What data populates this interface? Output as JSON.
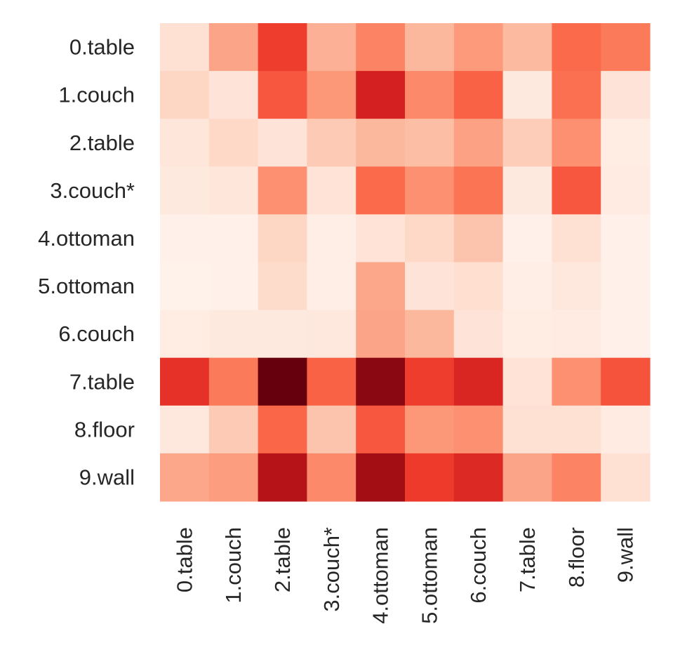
{
  "chart_data": {
    "type": "heatmap",
    "title": "",
    "xlabel": "",
    "ylabel": "",
    "row_labels": [
      "0.table",
      "1.couch",
      "2.table",
      "3.couch*",
      "4.ottoman",
      "5.ottoman",
      "6.couch",
      "7.table",
      "8.floor",
      "9.wall"
    ],
    "col_labels": [
      "0.table",
      "1.couch",
      "2.table",
      "3.couch*",
      "4.ottoman",
      "5.ottoman",
      "6.couch",
      "7.table",
      "8.floor",
      "9.wall"
    ],
    "colormap": "Reds",
    "value_range": [
      0,
      1
    ],
    "values": [
      [
        0.12,
        0.32,
        0.62,
        0.28,
        0.42,
        0.26,
        0.35,
        0.25,
        0.5,
        0.45
      ],
      [
        0.16,
        0.1,
        0.55,
        0.36,
        0.72,
        0.4,
        0.52,
        0.07,
        0.48,
        0.1
      ],
      [
        0.09,
        0.15,
        0.1,
        0.2,
        0.26,
        0.24,
        0.33,
        0.19,
        0.38,
        0.05
      ],
      [
        0.07,
        0.09,
        0.38,
        0.11,
        0.5,
        0.38,
        0.47,
        0.07,
        0.55,
        0.06
      ],
      [
        0.03,
        0.03,
        0.16,
        0.04,
        0.11,
        0.15,
        0.22,
        0.03,
        0.12,
        0.03
      ],
      [
        0.02,
        0.03,
        0.14,
        0.04,
        0.31,
        0.1,
        0.13,
        0.04,
        0.08,
        0.03
      ],
      [
        0.05,
        0.07,
        0.07,
        0.08,
        0.32,
        0.26,
        0.1,
        0.05,
        0.06,
        0.03
      ],
      [
        0.66,
        0.45,
        1.0,
        0.52,
        0.93,
        0.62,
        0.7,
        0.11,
        0.38,
        0.56
      ],
      [
        0.08,
        0.2,
        0.51,
        0.22,
        0.55,
        0.36,
        0.38,
        0.12,
        0.12,
        0.06
      ],
      [
        0.31,
        0.34,
        0.82,
        0.4,
        0.88,
        0.63,
        0.69,
        0.32,
        0.42,
        0.12
      ]
    ]
  }
}
